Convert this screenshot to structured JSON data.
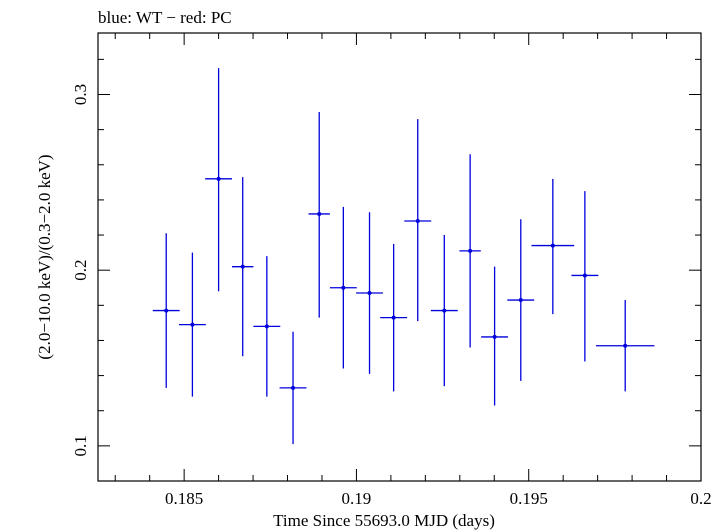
{
  "chart_data": {
    "type": "scatter",
    "title": "blue: WT − red: PC",
    "xlabel": "Time Since 55693.0 MJD (days)",
    "ylabel": "(2.0−10.0 keV)/(0.3−2.0 keV)",
    "xlim": [
      0.1825,
      0.2
    ],
    "ylim": [
      0.08,
      0.335
    ],
    "x_ticks": [
      0.185,
      0.19,
      0.195,
      0.2
    ],
    "x_tick_labels": [
      "0.185",
      "0.19",
      "0.195",
      "0.2"
    ],
    "y_ticks": [
      0.1,
      0.2,
      0.3
    ],
    "y_tick_labels": [
      "0.1",
      "0.2",
      "0.3"
    ],
    "grid": false,
    "series": [
      {
        "name": "WT",
        "color": "#0000dd",
        "points": [
          {
            "x": 0.18448,
            "xerr": 0.00039,
            "y": 0.177,
            "ylo": 0.133,
            "yhi": 0.221
          },
          {
            "x": 0.18524,
            "xerr": 0.00039,
            "y": 0.169,
            "ylo": 0.128,
            "yhi": 0.21
          },
          {
            "x": 0.186,
            "xerr": 0.00039,
            "y": 0.252,
            "ylo": 0.188,
            "yhi": 0.315
          },
          {
            "x": 0.1867,
            "xerr": 0.00031,
            "y": 0.202,
            "ylo": 0.151,
            "yhi": 0.253
          },
          {
            "x": 0.1874,
            "xerr": 0.00039,
            "y": 0.168,
            "ylo": 0.128,
            "yhi": 0.208
          },
          {
            "x": 0.18816,
            "xerr": 0.00039,
            "y": 0.133,
            "ylo": 0.101,
            "yhi": 0.165
          },
          {
            "x": 0.18892,
            "xerr": 0.00031,
            "y": 0.232,
            "ylo": 0.173,
            "yhi": 0.29
          },
          {
            "x": 0.18962,
            "xerr": 0.00039,
            "y": 0.19,
            "ylo": 0.144,
            "yhi": 0.236
          },
          {
            "x": 0.19038,
            "xerr": 0.00039,
            "y": 0.187,
            "ylo": 0.141,
            "yhi": 0.233
          },
          {
            "x": 0.19108,
            "xerr": 0.00039,
            "y": 0.173,
            "ylo": 0.131,
            "yhi": 0.215
          },
          {
            "x": 0.19178,
            "xerr": 0.00039,
            "y": 0.228,
            "ylo": 0.171,
            "yhi": 0.286
          },
          {
            "x": 0.19255,
            "xerr": 0.00039,
            "y": 0.177,
            "ylo": 0.134,
            "yhi": 0.22
          },
          {
            "x": 0.1933,
            "xerr": 0.00031,
            "y": 0.211,
            "ylo": 0.156,
            "yhi": 0.266
          },
          {
            "x": 0.19401,
            "xerr": 0.00039,
            "y": 0.162,
            "ylo": 0.123,
            "yhi": 0.202
          },
          {
            "x": 0.19477,
            "xerr": 0.00039,
            "y": 0.183,
            "ylo": 0.137,
            "yhi": 0.229
          },
          {
            "x": 0.1957,
            "xerr": 0.00062,
            "y": 0.214,
            "ylo": 0.175,
            "yhi": 0.252
          },
          {
            "x": 0.19663,
            "xerr": 0.00039,
            "y": 0.197,
            "ylo": 0.148,
            "yhi": 0.245
          },
          {
            "x": 0.1978,
            "xerr": 0.00085,
            "y": 0.157,
            "ylo": 0.131,
            "yhi": 0.183
          }
        ]
      }
    ]
  }
}
